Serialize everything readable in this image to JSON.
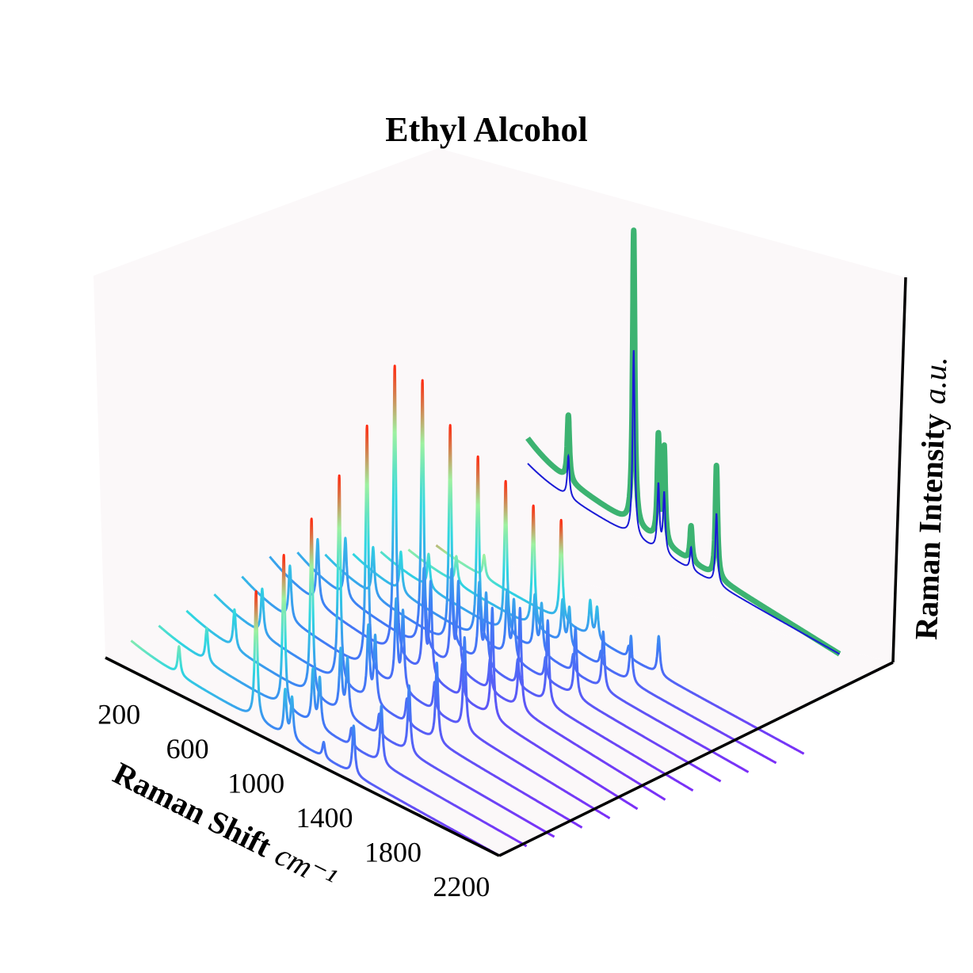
{
  "chart_data": {
    "type": "line",
    "title": "Ethyl Alcohol",
    "xlabel": "Raman Shift",
    "xlabel_unit": "cm⁻¹",
    "zlabel": "Raman Intensity",
    "zlabel_unit": "a.u.",
    "x_ticks": [
      "200",
      "600",
      "1000",
      "1400",
      "1800",
      "2200"
    ],
    "xlim": [
      0,
      2300
    ],
    "grid": false,
    "colormap": "rainbow (violet → cyan → green → red by intensity)",
    "peak_projection_colormap": "purple-to-red gradient on back wall",
    "series_count": 12,
    "peaks_cm1": [
      430,
      880,
      1050,
      1090,
      1275,
      1450
    ],
    "peak_heights_relative": [
      0.22,
      1.0,
      0.35,
      0.32,
      0.12,
      0.38
    ],
    "series_scale": [
      0.42,
      0.5,
      0.58,
      0.68,
      0.8,
      0.95,
      0.88,
      0.72,
      0.6,
      0.5,
      0.4,
      0.33
    ],
    "baseline": {
      "start": 0.18,
      "end": 0.0
    },
    "side_panel": {
      "series": [
        {
          "color": "#3cb371",
          "style": "thick envelope"
        },
        {
          "color": "#1a1ad6",
          "style": "thin mean line"
        }
      ]
    },
    "colors": {
      "pane": "#fbf8f9",
      "axis": "#000000",
      "side_fill": "#3cb371",
      "side_line": "#1a1ad6"
    }
  }
}
